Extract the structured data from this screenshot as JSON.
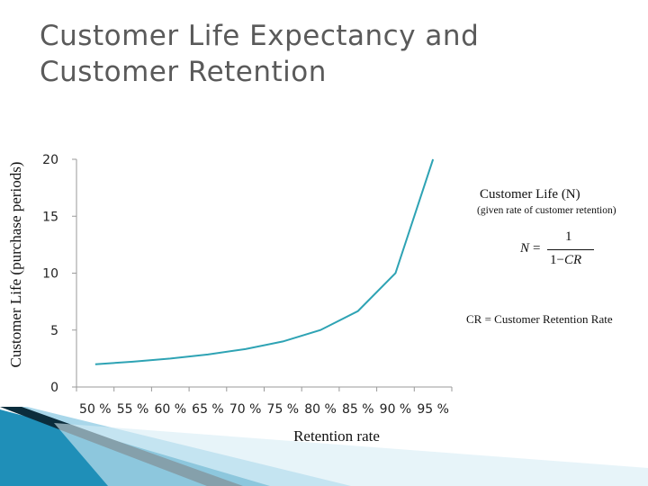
{
  "slide": {
    "title": "Customer Life Expectancy and Customer Retention"
  },
  "formula": {
    "title": "Customer Life (N)",
    "subtitle": "(given rate of customer retention)",
    "lhs": "N",
    "equals": "=",
    "numerator": "1",
    "denominator_prefix": "1−",
    "denominator_var": "CR",
    "note": "CR = Customer Retention Rate"
  },
  "colors": {
    "line": "#2ea3b4",
    "axis": "#9a9a9a",
    "decor_dark": "#0b2d3c",
    "decor_blue": "#1f8fb8",
    "decor_light": "#a9d7ea"
  },
  "chart_data": {
    "type": "line",
    "title": "",
    "xlabel": "Retention rate",
    "ylabel": "Customer Life (purchase periods)",
    "categories": [
      "50 %",
      "55 %",
      "60 %",
      "65 %",
      "70 %",
      "75 %",
      "80 %",
      "85 %",
      "90 %",
      "95 %"
    ],
    "values": [
      2.0,
      2.22,
      2.5,
      2.86,
      3.33,
      4.0,
      5.0,
      6.67,
      10.0,
      20.0
    ],
    "ylim": [
      0,
      20
    ],
    "yticks": [
      0,
      5,
      10,
      15,
      20
    ],
    "grid": false,
    "legend": "none"
  }
}
